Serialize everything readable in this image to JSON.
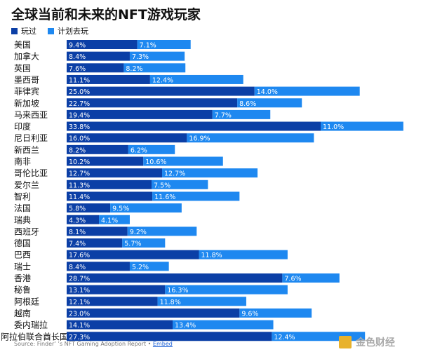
{
  "chart_data": {
    "type": "bar",
    "orientation": "horizontal",
    "stacked": true,
    "title": "全球当前和未来的NFT游戏玩家",
    "categories": [
      "美国",
      "加拿大",
      "英国",
      "墨西哥",
      "菲律宾",
      "新加坡",
      "马来西亚",
      "印度",
      "尼日利亚",
      "新西兰",
      "南非",
      "哥伦比亚",
      "爱尔兰",
      "智利",
      "法国",
      "瑞典",
      "西班牙",
      "德国",
      "巴西",
      "瑞士",
      "香港",
      "秘鲁",
      "阿根廷",
      "越南",
      "委内瑞拉",
      "阿拉伯联合酋长国"
    ],
    "series": [
      {
        "name": "玩过",
        "color": "#0b3fa6",
        "values": [
          9.4,
          8.4,
          7.6,
          11.1,
          25.0,
          22.7,
          19.4,
          33.8,
          16.0,
          8.2,
          10.2,
          12.7,
          11.3,
          11.4,
          5.8,
          4.3,
          8.1,
          7.4,
          17.6,
          8.4,
          28.7,
          13.1,
          12.1,
          23.0,
          14.1,
          27.3
        ]
      },
      {
        "name": "计划去玩",
        "color": "#1e88f0",
        "values": [
          7.1,
          7.3,
          8.2,
          12.4,
          14.0,
          8.6,
          7.7,
          11.0,
          16.9,
          6.2,
          10.6,
          12.7,
          7.5,
          11.6,
          9.5,
          4.1,
          9.2,
          5.7,
          11.8,
          5.2,
          7.6,
          16.3,
          11.8,
          9.6,
          13.4,
          12.4
        ]
      }
    ],
    "value_suffix": "%",
    "legend": "top-left",
    "grid": false
  },
  "source": "Source: Finder’ ’s NFT Gaming Adoption Report • ",
  "embed_link": "Embed",
  "watermark": "金色财经"
}
